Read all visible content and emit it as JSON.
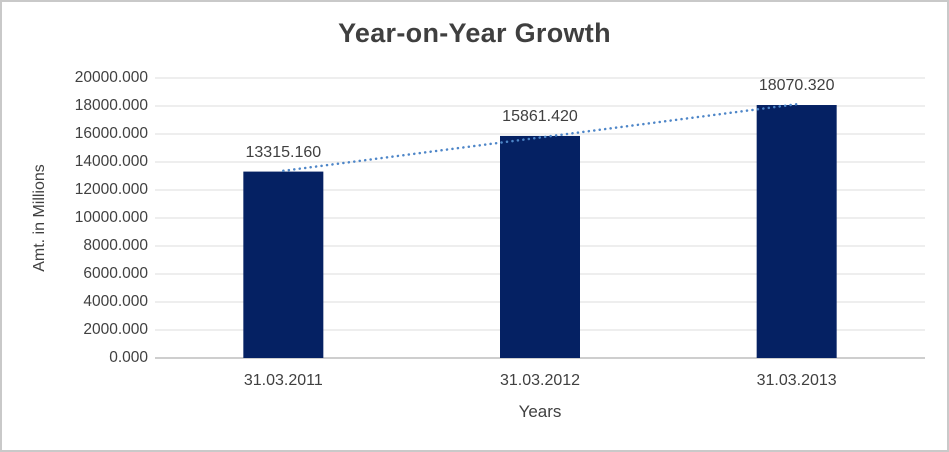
{
  "chart_data": {
    "type": "bar",
    "title": "Year-on-Year Growth",
    "xlabel": "Years",
    "ylabel": "Amt. in Millions",
    "categories": [
      "31.03.2011",
      "31.03.2012",
      "31.03.2013"
    ],
    "series": [
      {
        "name": "Amt. in Millions",
        "values": [
          13315.16,
          15861.42,
          18070.32
        ]
      }
    ],
    "data_labels": [
      "13315.160",
      "15861.420",
      "18070.320"
    ],
    "y_ticks": [
      "0.000",
      "2000.000",
      "4000.000",
      "6000.000",
      "8000.000",
      "10000.000",
      "12000.000",
      "14000.000",
      "16000.000",
      "18000.000",
      "20000.000"
    ],
    "ylim": [
      0,
      20000
    ],
    "grid": "horizontal",
    "legend": "none",
    "trendline": {
      "type": "linear",
      "style": "dotted"
    },
    "colors": {
      "bar": "#052163",
      "trendline": "#4e86c8",
      "gridline": "#dcdcdc",
      "axis_line": "#bdbdbd",
      "text": "#404040",
      "border": "#c9c9c9",
      "background": "#ffffff"
    }
  }
}
